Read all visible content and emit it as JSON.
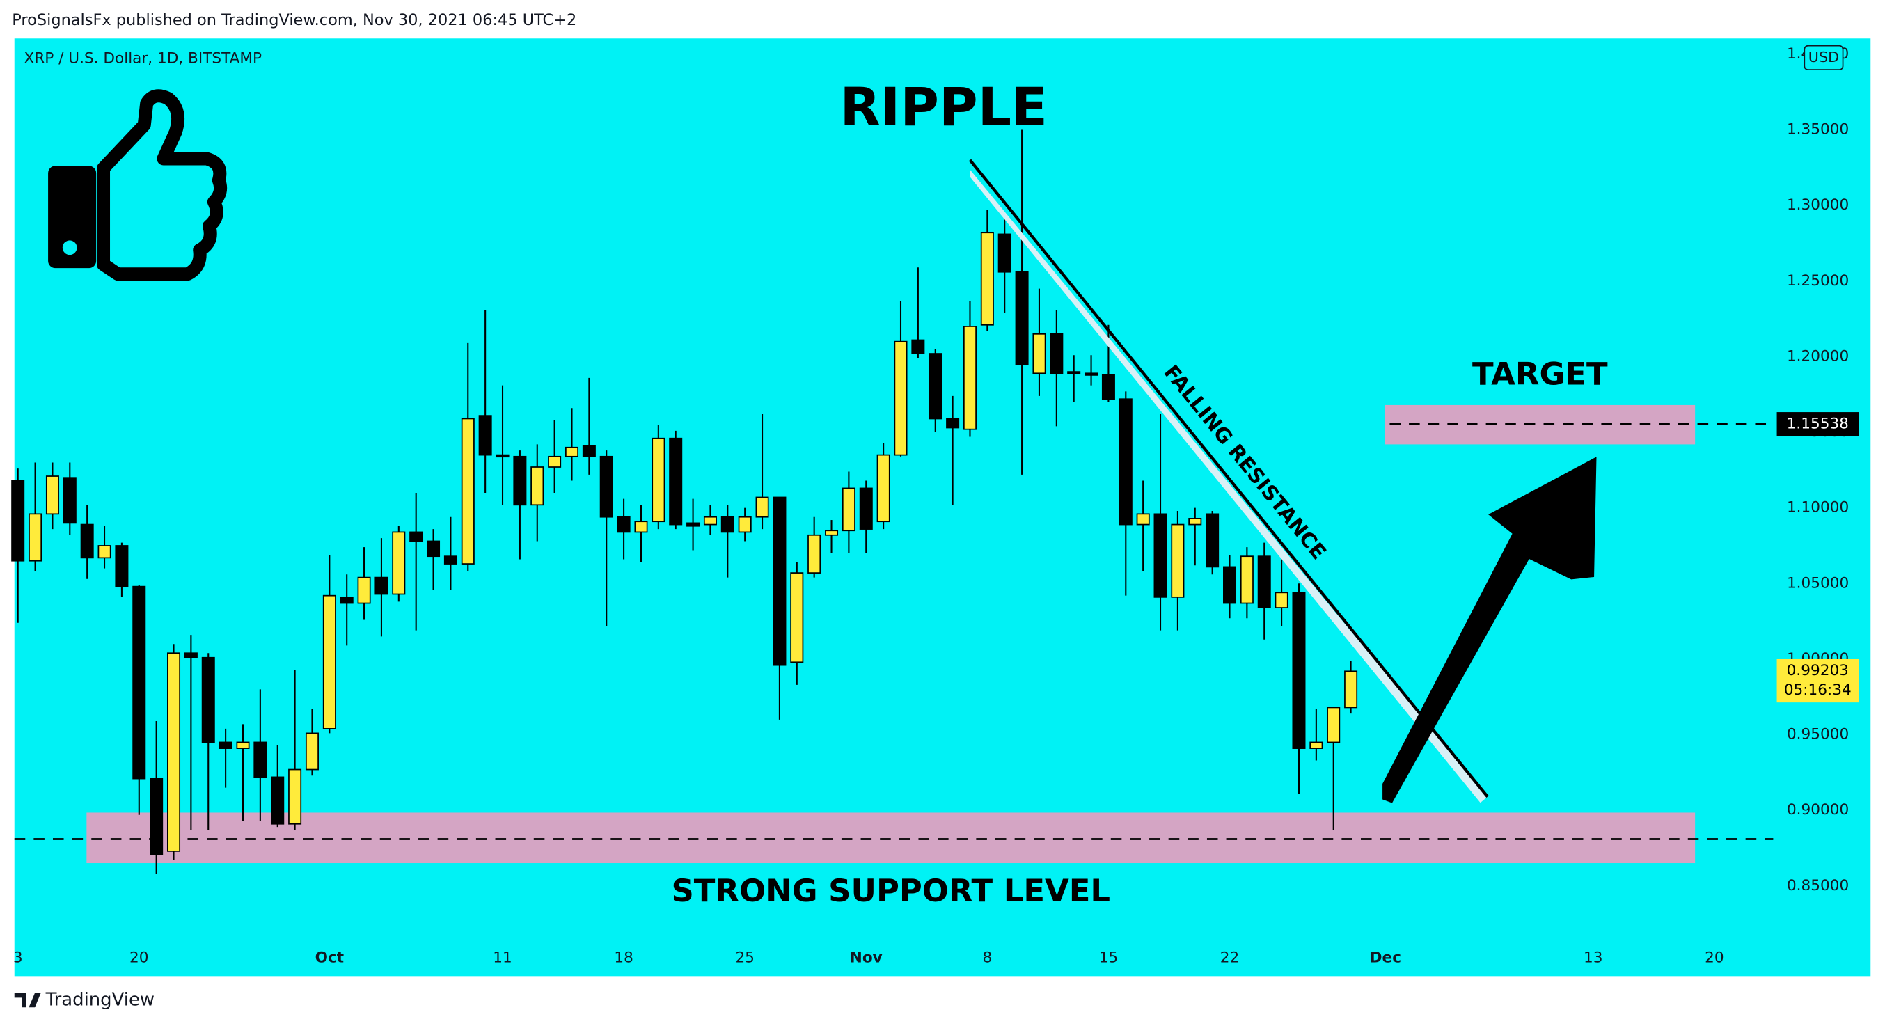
{
  "chart_data": {
    "type": "candlestick",
    "header": "ProSignalsFx published on TradingView.com, Nov 30, 2021 06:45 UTC+2",
    "symbol": "XRP / U.S. Dollar, 1D, BITSTAMP",
    "title": "RIPPLE",
    "currency": "USD",
    "footer": "TradingView",
    "background": "#00f2f5",
    "up_color": "#ffeb3b",
    "down_color": "#000000",
    "grid": false,
    "open": [
      1.118,
      1.065,
      1.096,
      1.12,
      1.089,
      1.067,
      1.075,
      1.048,
      0.921,
      0.873,
      1.004,
      1.001,
      0.945,
      0.941,
      0.945,
      0.922,
      0.891,
      0.927,
      0.954,
      1.041,
      1.037,
      1.054,
      1.043,
      1.084,
      1.078,
      1.068,
      1.063,
      1.161,
      1.135,
      1.134,
      1.102,
      1.127,
      1.134,
      1.141,
      1.134,
      1.094,
      1.084,
      1.091,
      1.146,
      1.09,
      1.089,
      1.094,
      1.084,
      1.094,
      1.107,
      0.998,
      1.057,
      1.082,
      1.085,
      1.113,
      1.091,
      1.135,
      1.211,
      1.202,
      1.159,
      1.152,
      1.221,
      1.281,
      1.256,
      1.189,
      1.215,
      1.19,
      1.189,
      1.188,
      1.172,
      1.089,
      1.096,
      1.041,
      1.089,
      1.096,
      1.061,
      1.037,
      1.068,
      1.034,
      1.044,
      0.941,
      0.945,
      0.968
    ],
    "high": [
      1.126,
      1.13,
      1.13,
      1.13,
      1.102,
      1.088,
      1.077,
      1.049,
      0.959,
      1.01,
      1.016,
      1.004,
      0.954,
      0.957,
      0.98,
      0.943,
      0.993,
      0.967,
      1.069,
      1.056,
      1.074,
      1.08,
      1.088,
      1.11,
      1.086,
      1.094,
      1.209,
      1.231,
      1.181,
      1.138,
      1.142,
      1.158,
      1.166,
      1.186,
      1.138,
      1.106,
      1.102,
      1.155,
      1.151,
      1.106,
      1.102,
      1.102,
      1.1,
      1.162,
      1.107,
      1.064,
      1.094,
      1.092,
      1.124,
      1.118,
      1.143,
      1.237,
      1.259,
      1.205,
      1.174,
      1.237,
      1.297,
      1.293,
      1.35,
      1.245,
      1.231,
      1.201,
      1.201,
      1.221,
      1.177,
      1.118,
      1.162,
      1.098,
      1.1,
      1.098,
      1.069,
      1.074,
      1.077,
      1.066,
      1.05,
      0.967,
      0.968,
      0.999
    ],
    "low": [
      1.024,
      1.058,
      1.086,
      1.082,
      1.053,
      1.06,
      1.041,
      0.897,
      0.858,
      0.867,
      0.887,
      0.887,
      0.915,
      0.893,
      0.893,
      0.889,
      0.887,
      0.923,
      0.951,
      1.009,
      1.026,
      1.015,
      1.038,
      1.019,
      1.046,
      1.046,
      1.058,
      1.11,
      1.102,
      1.066,
      1.078,
      1.11,
      1.118,
      1.122,
      1.022,
      1.066,
      1.064,
      1.086,
      1.086,
      1.072,
      1.082,
      1.054,
      1.078,
      1.086,
      0.96,
      0.983,
      1.054,
      1.07,
      1.07,
      1.07,
      1.086,
      1.134,
      1.199,
      1.15,
      1.102,
      1.147,
      1.217,
      1.229,
      1.122,
      1.174,
      1.154,
      1.17,
      1.181,
      1.17,
      1.042,
      1.058,
      1.019,
      1.019,
      1.062,
      1.056,
      1.027,
      1.027,
      1.013,
      1.022,
      0.911,
      0.933,
      0.887,
      0.964
    ],
    "close": [
      1.065,
      1.096,
      1.121,
      1.09,
      1.067,
      1.075,
      1.048,
      0.921,
      0.871,
      1.004,
      1.001,
      0.945,
      0.941,
      0.945,
      0.922,
      0.891,
      0.927,
      0.951,
      1.042,
      1.037,
      1.054,
      1.043,
      1.084,
      1.078,
      1.068,
      1.063,
      1.159,
      1.135,
      1.134,
      1.102,
      1.127,
      1.134,
      1.14,
      1.134,
      1.094,
      1.084,
      1.091,
      1.146,
      1.089,
      1.088,
      1.094,
      1.084,
      1.094,
      1.107,
      0.996,
      1.057,
      1.082,
      1.085,
      1.113,
      1.086,
      1.135,
      1.21,
      1.202,
      1.159,
      1.153,
      1.22,
      1.282,
      1.256,
      1.195,
      1.215,
      1.189,
      1.189,
      1.188,
      1.172,
      1.089,
      1.096,
      1.041,
      1.089,
      1.093,
      1.061,
      1.037,
      1.068,
      1.034,
      1.044,
      0.941,
      0.945,
      0.968,
      0.992
    ],
    "xlim": [
      -0.2,
      101.4
    ],
    "xticks": [
      {
        "value": 0,
        "label": "3"
      },
      {
        "value": 7,
        "label": "20"
      },
      {
        "value": 18,
        "label": "Oct"
      },
      {
        "value": 28,
        "label": "11"
      },
      {
        "value": 35,
        "label": "18"
      },
      {
        "value": 42,
        "label": "25"
      },
      {
        "value": 49,
        "label": "Nov"
      },
      {
        "value": 56,
        "label": "8"
      },
      {
        "value": 63,
        "label": "15"
      },
      {
        "value": 70,
        "label": "22"
      },
      {
        "value": 79,
        "label": "Dec"
      },
      {
        "value": 91,
        "label": "13"
      },
      {
        "value": 98,
        "label": "20"
      }
    ],
    "ylim": [
      0.7904,
      1.4104
    ],
    "yticks": [
      {
        "value": 0.85,
        "label": "0.85000"
      },
      {
        "value": 0.9,
        "label": "0.90000"
      },
      {
        "value": 0.95,
        "label": "0.95000"
      },
      {
        "value": 1.0,
        "label": "1.00000"
      },
      {
        "value": 1.05,
        "label": "1.05000"
      },
      {
        "value": 1.1,
        "label": "1.10000"
      },
      {
        "value": 1.15,
        "label": "1.15000"
      },
      {
        "value": 1.2,
        "label": "1.20000"
      },
      {
        "value": 1.25,
        "label": "1.25000"
      },
      {
        "value": 1.3,
        "label": "1.30000"
      },
      {
        "value": 1.35,
        "label": "1.35000"
      },
      {
        "value": 1.4,
        "label": "1.40000"
      }
    ],
    "last_price": 0.99203,
    "countdown": "05:16:34",
    "target_price": 1.15538,
    "target_label": "TARGET",
    "target_zone": [
      1.142,
      1.168
    ],
    "support_level": 0.881,
    "support_zone": [
      0.8651,
      0.8985
    ],
    "support_label": "STRONG SUPPORT LEVEL",
    "resistance": {
      "label": "FALLING RESISTANCE",
      "x": [
        55.0,
        84.9
      ],
      "y": [
        1.33,
        0.909
      ]
    }
  }
}
